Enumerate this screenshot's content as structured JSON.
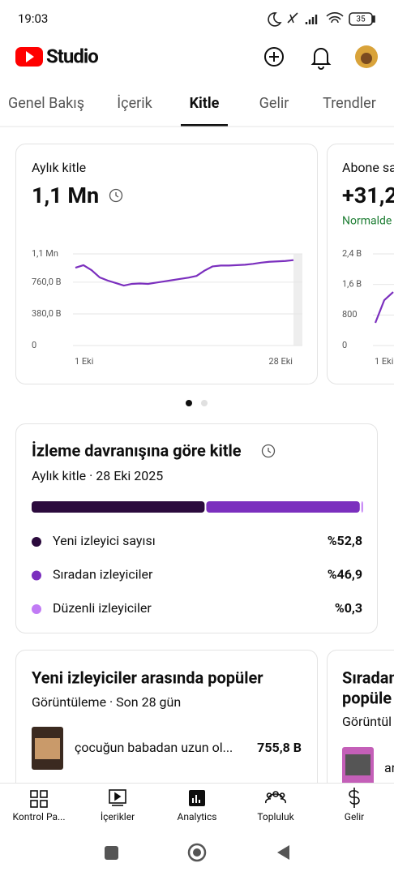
{
  "status_bar": {
    "time": "19:03",
    "battery": "35"
  },
  "header": {
    "logo": "Studio"
  },
  "tabs": {
    "items": [
      "Genel Bakış",
      "İçerik",
      "Kitle",
      "Gelir",
      "Trendler"
    ],
    "active": 2
  },
  "summary_cards": [
    {
      "title": "Aylık kitle",
      "value": "1,1 Mn",
      "chart_data": {
        "type": "line",
        "color": "#7b2fbe",
        "categories": [
          "1 Eki",
          null,
          null,
          null,
          null,
          null,
          null,
          null,
          null,
          null,
          null,
          null,
          null,
          null,
          null,
          null,
          null,
          null,
          null,
          null,
          null,
          null,
          null,
          null,
          null,
          null,
          null,
          "28 Eki"
        ],
        "values": [
          934000,
          964000,
          905000,
          818000,
          780000,
          750000,
          720000,
          740000,
          745000,
          740000,
          755000,
          770000,
          785000,
          800000,
          815000,
          835000,
          900000,
          950000,
          960000,
          960000,
          965000,
          970000,
          980000,
          995000,
          1005000,
          1010000,
          1015000,
          1025000
        ],
        "ylim": [
          0,
          1100000
        ],
        "yticks": [
          0,
          {
            "value": 380000,
            "label": "380,0 B"
          },
          {
            "value": 760000,
            "label": "760,0 B"
          },
          {
            "value": 1100000,
            "label": "1,1 Mn"
          }
        ]
      }
    },
    {
      "title": "Abone sa",
      "value": "+31,2",
      "note": "Normalde",
      "chart_data": {
        "type": "line",
        "color": "#7b2fbe",
        "categories": [
          "1 Eki",
          null,
          null
        ],
        "values": [
          595,
          1189,
          1401
        ],
        "ylim": [
          0,
          2400
        ],
        "yticks": [
          0,
          800,
          {
            "value": 1600,
            "label": "1,6 B"
          },
          {
            "value": 2400,
            "label": "2,4 B"
          }
        ]
      }
    }
  ],
  "behavior_card": {
    "title": "İzleme davranışına göre kitle",
    "subtitle": "Aylık kitle · 28 Eki 2025",
    "segments": [
      {
        "name": "Yeni izleyici sayısı",
        "value": 52.8,
        "label": "%52,8",
        "color": "#2b0a3d"
      },
      {
        "name": "Sıradan izleyiciler",
        "value": 46.9,
        "label": "%46,9",
        "color": "#7b2fbe"
      },
      {
        "name": "Düzenli izleyiciler",
        "value": 0.3,
        "label": "%0,3",
        "color": "#c17bf5"
      }
    ]
  },
  "popular_cards": [
    {
      "title": "Yeni izleyiciler arasında popüler",
      "subtitle": "Görüntüleme · Son 28 gün",
      "item": {
        "title": "çocuğun babadan uzun ol...",
        "views": "755,8 B"
      }
    },
    {
      "title_lines": [
        "Sıradan",
        "popüle"
      ],
      "subtitle": "Görüntül",
      "item": {
        "title": "ar"
      }
    }
  ],
  "bottom_nav": [
    "Kontrol Pa...",
    "İçerikler",
    "Analytics",
    "Topluluk",
    "Gelir"
  ]
}
